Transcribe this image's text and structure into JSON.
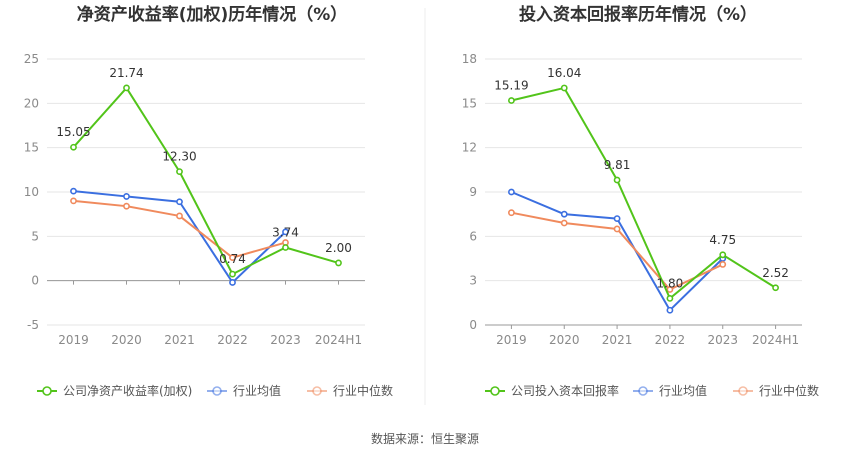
{
  "footer": {
    "source": "数据来源：恒生聚源"
  },
  "colors": {
    "company": "#52c41a",
    "industry_avg": "#3b6fe0",
    "industry_median": "#f08a5d"
  },
  "chart_data": [
    {
      "type": "line",
      "title": "净资产收益率(加权)历年情况（%）",
      "categories": [
        "2019",
        "2020",
        "2021",
        "2022",
        "2023",
        "2024H1"
      ],
      "ylim": [
        -5,
        25
      ],
      "yticks": [
        "-5",
        "0",
        "5",
        "10",
        "15",
        "20",
        "25"
      ],
      "ytick_values": [
        -5,
        0,
        5,
        10,
        15,
        20,
        25
      ],
      "grid": true,
      "legend": "bottom",
      "series": [
        {
          "name": "公司净资产收益率(加权)",
          "color": "#52c41a",
          "values": [
            15.05,
            21.74,
            12.3,
            0.74,
            3.74,
            2.0
          ],
          "labels": [
            "15.05",
            "21.74",
            "12.30",
            "0.74",
            "3.74",
            "2.00"
          ]
        },
        {
          "name": "行业均值",
          "color": "#3b6fe0",
          "values": [
            10.1,
            9.5,
            8.9,
            -0.2,
            5.5,
            null
          ]
        },
        {
          "name": "行业中位数",
          "color": "#f08a5d",
          "values": [
            9.0,
            8.4,
            7.3,
            2.6,
            4.3,
            null
          ]
        }
      ]
    },
    {
      "type": "line",
      "title": "投入资本回报率历年情况（%）",
      "categories": [
        "2019",
        "2020",
        "2021",
        "2022",
        "2023",
        "2024H1"
      ],
      "ylim": [
        0,
        18
      ],
      "yticks": [
        "0",
        "3",
        "6",
        "9",
        "12",
        "15",
        "18"
      ],
      "ytick_values": [
        0,
        3,
        6,
        9,
        12,
        15,
        18
      ],
      "grid": true,
      "legend": "bottom",
      "series": [
        {
          "name": "公司投入资本回报率",
          "color": "#52c41a",
          "values": [
            15.19,
            16.04,
            9.81,
            1.8,
            4.75,
            2.52
          ],
          "labels": [
            "15.19",
            "16.04",
            "9.81",
            "1.80",
            "4.75",
            "2.52"
          ]
        },
        {
          "name": "行业均值",
          "color": "#3b6fe0",
          "values": [
            9.0,
            7.5,
            7.2,
            1.0,
            4.5,
            null
          ]
        },
        {
          "name": "行业中位数",
          "color": "#f08a5d",
          "values": [
            7.6,
            6.9,
            6.5,
            2.4,
            4.1,
            null
          ]
        }
      ]
    }
  ]
}
